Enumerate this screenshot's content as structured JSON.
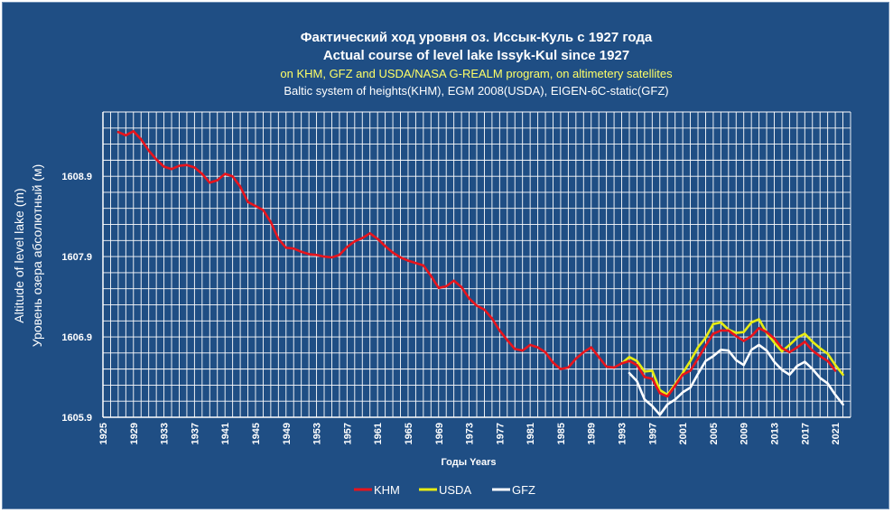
{
  "chart_data": {
    "type": "line",
    "title": "Фактический ход уровня оз. Иссык-Куль с 1927 года",
    "title_en": "Actual course of level lake Issyk-Kul since 1927",
    "subtitle": "on KHM, GFZ and USDA/NASA G-REALM program, on altimetery satellites",
    "subtitle2": "Baltic system of heights(KHM), EGM 2008(USDA), EIGEN-6C-static(GFZ)",
    "xlabel": "Годы  Years",
    "ylabel": "Altitude of  level lake  (m)",
    "ylabel2": "Уровень озера абсолютный (м)",
    "xlim": [
      1925,
      2023
    ],
    "ylim": [
      1605.9,
      1609.7
    ],
    "x_ticks": [
      1925,
      1929,
      1933,
      1937,
      1941,
      1945,
      1949,
      1953,
      1957,
      1961,
      1965,
      1969,
      1973,
      1977,
      1981,
      1985,
      1989,
      1993,
      1997,
      2001,
      2005,
      2009,
      2013,
      2017,
      2021
    ],
    "x_tick_labels": [
      "1925",
      "1929",
      "1933",
      "1937",
      "1941",
      "1945",
      "1949",
      "1953",
      "1957",
      "1961",
      "1965",
      "1969",
      "1973",
      "1977",
      "1981",
      "1985",
      "1989",
      "1993",
      "1997",
      "2001",
      "2005",
      "2009",
      "2013",
      "2017",
      "2021"
    ],
    "y_ticks": [
      1605.9,
      1606.9,
      1607.9,
      1608.9
    ],
    "y_tick_labels": [
      "1605.9",
      "1606.9",
      "1607.9",
      "1608.9"
    ],
    "legend": [
      "KHM",
      "USDA",
      "GFZ"
    ],
    "series": [
      {
        "name": "KHM",
        "color": "#e8141c",
        "x": [
          1927,
          1928,
          1929,
          1930,
          1931,
          1932,
          1933,
          1934,
          1935,
          1936,
          1937,
          1938,
          1939,
          1940,
          1941,
          1942,
          1943,
          1944,
          1945,
          1946,
          1947,
          1948,
          1949,
          1950,
          1951,
          1952,
          1953,
          1954,
          1955,
          1956,
          1957,
          1958,
          1959,
          1960,
          1961,
          1962,
          1963,
          1964,
          1965,
          1966,
          1967,
          1968,
          1969,
          1970,
          1971,
          1972,
          1973,
          1974,
          1975,
          1976,
          1977,
          1978,
          1979,
          1980,
          1981,
          1982,
          1983,
          1984,
          1985,
          1986,
          1987,
          1988,
          1989,
          1990,
          1991,
          1992,
          1993,
          1994,
          1995,
          1996,
          1997,
          1998,
          1999,
          2000,
          2001,
          2002,
          2003,
          2004,
          2005,
          2006,
          2007,
          2008,
          2009,
          2010,
          2011,
          2012,
          2013,
          2014,
          2015,
          2016,
          2017,
          2018,
          2019,
          2020,
          2021
        ],
        "values": [
          1609.45,
          1609.41,
          1609.46,
          1609.36,
          1609.22,
          1609.11,
          1609.02,
          1608.99,
          1609.03,
          1609.04,
          1609.01,
          1608.93,
          1608.82,
          1608.85,
          1608.93,
          1608.9,
          1608.77,
          1608.58,
          1608.53,
          1608.48,
          1608.33,
          1608.12,
          1608.01,
          1608.0,
          1607.96,
          1607.93,
          1607.92,
          1607.9,
          1607.89,
          1607.92,
          1608.02,
          1608.09,
          1608.13,
          1608.19,
          1608.12,
          1608.03,
          1607.95,
          1607.89,
          1607.85,
          1607.82,
          1607.79,
          1607.66,
          1607.51,
          1607.53,
          1607.6,
          1607.52,
          1607.38,
          1607.29,
          1607.24,
          1607.13,
          1606.98,
          1606.86,
          1606.75,
          1606.73,
          1606.8,
          1606.77,
          1606.71,
          1606.58,
          1606.5,
          1606.52,
          1606.63,
          1606.71,
          1606.77,
          1606.65,
          1606.53,
          1606.52,
          1606.57,
          1606.6,
          1606.55,
          1606.4,
          1606.38,
          1606.2,
          1606.16,
          1606.29,
          1606.43,
          1606.48,
          1606.63,
          1606.79,
          1606.94,
          1606.98,
          1606.98,
          1606.91,
          1606.85,
          1606.91,
          1607.01,
          1606.96,
          1606.88,
          1606.76,
          1606.71,
          1606.77,
          1606.84,
          1606.73,
          1606.66,
          1606.6,
          1606.48
        ]
      },
      {
        "name": "USDA",
        "color": "#e8ec12",
        "x": [
          1993,
          1994,
          1995,
          1996,
          1997,
          1998,
          1999,
          2000,
          2001,
          2002,
          2003,
          2004,
          2005,
          2006,
          2007,
          2008,
          2009,
          2010,
          2011,
          2012,
          2013,
          2014,
          2015,
          2016,
          2017,
          2018,
          2019,
          2020,
          2021,
          2022
        ],
        "values": [
          1606.57,
          1606.65,
          1606.6,
          1606.47,
          1606.48,
          1606.24,
          1606.18,
          1606.31,
          1606.45,
          1606.6,
          1606.77,
          1606.89,
          1607.06,
          1607.08,
          1606.99,
          1606.95,
          1606.96,
          1607.08,
          1607.12,
          1606.95,
          1606.83,
          1606.72,
          1606.8,
          1606.89,
          1606.94,
          1606.84,
          1606.76,
          1606.69,
          1606.55,
          1606.43
        ]
      },
      {
        "name": "GFZ",
        "color": "#ffffff",
        "x": [
          1994,
          1995,
          1996,
          1997,
          1998,
          1999,
          2000,
          2001,
          2002,
          2003,
          2004,
          2005,
          2006,
          2007,
          2008,
          2009,
          2010,
          2011,
          2012,
          2013,
          2014,
          2015,
          2016,
          2017,
          2018,
          2019,
          2020,
          2021,
          2022
        ],
        "values": [
          1606.45,
          1606.35,
          1606.12,
          1606.04,
          1605.93,
          1606.06,
          1606.12,
          1606.21,
          1606.27,
          1606.44,
          1606.6,
          1606.66,
          1606.74,
          1606.73,
          1606.61,
          1606.55,
          1606.74,
          1606.8,
          1606.73,
          1606.59,
          1606.49,
          1606.43,
          1606.54,
          1606.59,
          1606.5,
          1606.39,
          1606.32,
          1606.18,
          1606.06
        ]
      }
    ]
  }
}
